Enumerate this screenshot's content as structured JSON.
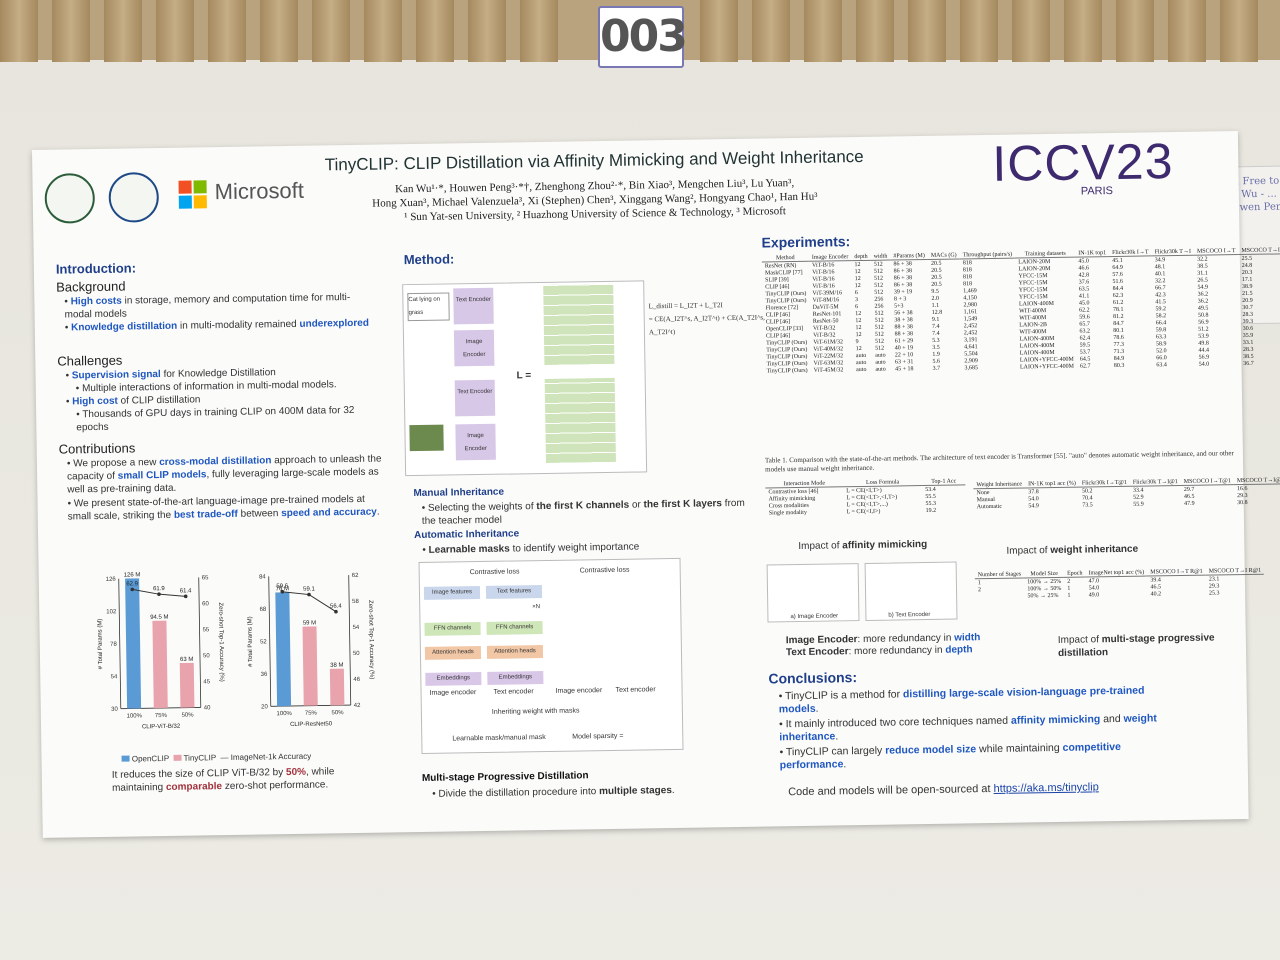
{
  "booth": {
    "number": "003"
  },
  "side_note": {
    "lines": [
      "Feel Free to",
      "Kan Wu - ...",
      "Houwen Peng",
      "..."
    ]
  },
  "poster": {
    "logos": {
      "microsoft": "Microsoft"
    },
    "title": "TinyCLIP: CLIP Distillation via Affinity Mimicking and Weight Inheritance",
    "authors_line1": "Kan Wu¹·*, Houwen Peng³·*†, Zhenghong Zhou²·*, Bin Xiao³, Mengchen Liu³, Lu Yuan³,",
    "authors_line2": "Hong Xuan³, Michael Valenzuela³, Xi (Stephen) Chen³, Xinggang Wang², Hongyang Chao¹, Han Hu³",
    "affiliations": "¹ Sun Yat-sen University, ² Huazhong University of Science & Technology, ³ Microsoft",
    "conference": "ICCV23",
    "location": "PARIS",
    "introduction": {
      "heading": "Introduction:",
      "background_title": "Background",
      "background_1a": "High costs",
      "background_1b": " in storage, memory and computation time for multi-modal models",
      "background_2a": "Knowledge distillation",
      "background_2b": " in multi-modality remained ",
      "background_2c": "underexplored",
      "challenges_title": "Challenges",
      "challenge_1a": "Supervision signal",
      "challenge_1b": " for Knowledge Distillation",
      "challenge_1_sub": "Multiple interactions of information in multi-modal models.",
      "challenge_2a": "High cost",
      "challenge_2b": " of CLIP distillation",
      "challenge_2_sub": "Thousands of GPU days in training CLIP on 400M data for 32 epochs",
      "contributions_title": "Contributions",
      "contribution_1a": "We propose a new ",
      "contribution_1b": "cross-modal distillation",
      "contribution_1c": " approach to unleash the capacity of ",
      "contribution_1d": "small CLIP models",
      "contribution_1e": ", fully leveraging large-scale models as well as pre-training data.",
      "contribution_2a": "We present state-of-the-art language-image pre-trained models at small scale, striking the ",
      "contribution_2b": "best trade-off",
      "contribution_2c": " between ",
      "contribution_2d": "speed and accuracy",
      "contribution_2e": "."
    },
    "charts_caption_a": "It reduces the size of CLIP ViT-B/32 by ",
    "charts_caption_b": "50%",
    "charts_caption_c": ", while maintaining ",
    "charts_caption_d": "comparable",
    "charts_caption_e": " zero-shot performance.",
    "legend": {
      "openclip": "OpenCLIP",
      "tinyclip": "TinyCLIP",
      "imagenet": "ImageNet-1k Accuracy"
    },
    "method": {
      "heading": "Method:",
      "caption_cat": "Cat lying on grass",
      "text_encoder": "Text Encoder",
      "image_encoder": "Image Encoder",
      "loss_label": "L =",
      "manual_title": "Manual Inheritance",
      "manual_text_a": "Selecting the weights of ",
      "manual_text_b": "the first K channels",
      "manual_text_c": " or ",
      "manual_text_d": "the first K layers",
      "manual_text_e": " from the teacher model",
      "auto_title": "Automatic Inheritance",
      "auto_text_a": "Learnable masks",
      "auto_text_b": " to identify weight importance",
      "contrastive_loss": "Contrastive loss",
      "image_features": "Image features",
      "text_features": "Text features",
      "ffn": "FFN channels",
      "attn": "Attention heads",
      "emb": "Embeddings",
      "img_enc": "Image encoder",
      "txt_enc": "Text encoder",
      "inheriting": "Inheriting weight with masks",
      "mask_legend": "Learnable mask/manual mask",
      "sparsity": "Model sparsity =",
      "xn": "×N",
      "multistage_title": "Multi-stage Progressive Distillation",
      "multistage_text_a": "Divide the distillation procedure into ",
      "multistage_text_b": "multiple stages",
      "multistage_text_c": "."
    },
    "experiments": {
      "heading": "Experiments:",
      "table1_caption": "Table 1. Comparison with the state-of-the-art methods. The architecture of text encoder is Transformer [55]. \"auto\" denotes automatic weight inheritance, and our other models use manual weight inheritance.",
      "table1_header": [
        "Method",
        "Image Encoder",
        "depth",
        "width",
        "#Params (M)",
        "MACs (G)",
        "Throughput (pairs/s)",
        "Training datasets",
        "IN-1K top1",
        "Flickr30k I→T",
        "Flickr30k T→I",
        "MSCOCO I→T",
        "MSCOCO T→I"
      ],
      "table1_rows": [
        [
          "ResNet (RN)",
          "ViT-B/16",
          "12",
          "512",
          "86 + 38",
          "20.5",
          "818",
          "LAION-20M",
          "45.0",
          "45.1",
          "34.9",
          "32.2",
          "25.5"
        ],
        [
          "MaskCLIP [77]",
          "ViT-B/16",
          "12",
          "512",
          "86 + 38",
          "20.5",
          "818",
          "LAION-20M",
          "46.6",
          "64.9",
          "48.1",
          "38.5",
          "24.8"
        ],
        [
          "SLIP [39]",
          "ViT-B/16",
          "12",
          "512",
          "86 + 38",
          "20.5",
          "818",
          "YFCC-15M",
          "42.8",
          "57.6",
          "40.1",
          "31.1",
          "20.3"
        ],
        [
          "CLIP [46]",
          "ViT-B/16",
          "12",
          "512",
          "86 + 38",
          "20.5",
          "818",
          "YFCC-15M",
          "37.6",
          "51.6",
          "32.2",
          "26.5",
          "17.1"
        ],
        [
          "TinyCLIP (Ours)",
          "ViT-39M/16",
          "6",
          "512",
          "39 + 19",
          "9.5",
          "1,469",
          "YFCC-15M",
          "63.5",
          "84.4",
          "66.7",
          "54.9",
          "38.9"
        ],
        [
          "TinyCLIP (Ours)",
          "ViT-8M/16",
          "3",
          "256",
          "8 + 3",
          "2.0",
          "4,150",
          "YFCC-15M",
          "41.1",
          "62.3",
          "42.3",
          "36.2",
          "21.5"
        ],
        [
          "Florence [72]",
          "DaViT-5M",
          "6",
          "256",
          "5+3",
          "1.1",
          "2,980",
          "LAION-400M",
          "45.0",
          "61.2",
          "41.5",
          "36.2",
          "20.9"
        ],
        [
          "CLIP [46]",
          "ResNet-101",
          "12",
          "512",
          "56 + 38",
          "12.8",
          "1,161",
          "WIT-400M",
          "62.2",
          "78.1",
          "59.2",
          "49.5",
          "30.7"
        ],
        [
          "CLIP [46]",
          "ResNet-50",
          "12",
          "512",
          "38 + 38",
          "9.1",
          "1,549",
          "WIT-400M",
          "59.6",
          "81.2",
          "58.2",
          "50.8",
          "28.3"
        ],
        [
          "OpenCLIP [33]",
          "ViT-B/32",
          "12",
          "512",
          "88 + 38",
          "7.4",
          "2,452",
          "LAION-2B",
          "65.7",
          "84.7",
          "66.4",
          "56.9",
          "39.3"
        ],
        [
          "CLIP [46]",
          "ViT-B/32",
          "12",
          "512",
          "88 + 38",
          "7.4",
          "2,452",
          "WIT-400M",
          "63.2",
          "80.1",
          "59.8",
          "51.2",
          "30.6"
        ],
        [
          "TinyCLIP (Ours)",
          "ViT-61M/32",
          "9",
          "512",
          "61 + 29",
          "5.3",
          "3,191",
          "LAION-400M",
          "62.4",
          "78.6",
          "63.3",
          "53.9",
          "35.9"
        ],
        [
          "TinyCLIP (Ours)",
          "ViT-40M/32",
          "12",
          "512",
          "40 + 19",
          "3.5",
          "4,641",
          "LAION-400M",
          "59.5",
          "77.3",
          "58.9",
          "49.8",
          "33.1"
        ],
        [
          "TinyCLIP (Ours)",
          "ViT-22M/32",
          "auto",
          "auto",
          "22 + 10",
          "1.9",
          "5,504",
          "LAION-400M",
          "53.7",
          "71.3",
          "52.0",
          "44.4",
          "28.3"
        ],
        [
          "TinyCLIP (Ours)",
          "ViT-63M/32",
          "auto",
          "auto",
          "63 + 31",
          "5.6",
          "2,909",
          "LAION+YFCC-400M",
          "64.5",
          "84.9",
          "66.0",
          "56.9",
          "38.5"
        ],
        [
          "TinyCLIP (Ours)",
          "ViT-45M/32",
          "auto",
          "auto",
          "45 + 18",
          "3.7",
          "3,685",
          "LAION+YFCC-400M",
          "62.7",
          "80.3",
          "63.4",
          "54.0",
          "36.7"
        ]
      ],
      "table2_header": [
        "Interaction Mode",
        "Loss Formula",
        "Top-1 Acc"
      ],
      "table2_rows": [
        [
          "Contrastive loss [46]",
          "L = CE(<I,T>)",
          "53.4"
        ],
        [
          "Affinity mimicking",
          "L = CE(<I,T>,<I,T>)",
          "55.5"
        ],
        [
          "Cross modalities",
          "L = CE(<I,T>,...)",
          "55.3"
        ],
        [
          "Single modality",
          "L = CE(<I,I>)",
          "19.2"
        ]
      ],
      "table3_header": [
        "Weight Inheritance",
        "IN-1K top1 acc (%)",
        "Flickr30k I→T@1",
        "Flickr30k T→I@1",
        "MSCOCO I→T@1",
        "MSCOCO T→I@1"
      ],
      "table3_rows": [
        [
          "None",
          "37.8",
          "50.2",
          "33.4",
          "29.7",
          "16.6"
        ],
        [
          "Manual",
          "54.0",
          "70.4",
          "52.9",
          "46.5",
          "29.3"
        ],
        [
          "Automatic",
          "54.9",
          "73.5",
          "55.9",
          "47.9",
          "30.8"
        ]
      ],
      "impact_affinity_a": "Impact of ",
      "impact_affinity_b": "affinity mimicking",
      "impact_weight_a": "Impact of ",
      "impact_weight_b": "weight inheritance",
      "table4_header": [
        "Number of Stages",
        "Model Size",
        "Epoch",
        "ImageNet top1 acc (%)",
        "MSCOCO I→T R@1",
        "MSCOCO T→I R@1"
      ],
      "table4_rows": [
        [
          "1",
          "100% → 25%",
          "2",
          "47.0",
          "39.4",
          "23.1"
        ],
        [
          "2",
          "100% → 50%",
          "1",
          "54.0",
          "46.5",
          "29.3"
        ],
        [
          "",
          "50% → 25%",
          "1",
          "49.0",
          "40.2",
          "25.3"
        ]
      ],
      "fig_a_label": "a) Image Encoder",
      "fig_b_label": "b) Text Encoder",
      "image_enc_a": "Image Encoder",
      "image_enc_b": ": more redundancy in ",
      "image_enc_c": "width",
      "text_enc_a": "Text Encoder",
      "text_enc_b": ": more redundancy in ",
      "text_enc_c": "depth",
      "impact_multi_a": "Impact of ",
      "impact_multi_b": "multi-stage progressive distillation"
    },
    "conclusions": {
      "heading": "Conclusions:",
      "c1a": "TinyCLIP is a method for ",
      "c1b": "distilling large-scale vision-language pre-trained models",
      "c1c": ".",
      "c2a": "It mainly introduced two core techniques named ",
      "c2b": "affinity mimicking",
      "c2c": " and ",
      "c2d": "weight inheritance",
      "c2e": ".",
      "c3a": "TinyCLIP can largely ",
      "c3b": "reduce model size",
      "c3c": " while maintaining ",
      "c3d": "competitive performance",
      "c3e": ".",
      "code_text": "Code and models will be open-sourced at ",
      "code_link": "https://aka.ms/tinyclip"
    }
  },
  "chart_data": [
    {
      "type": "bar",
      "title": "CLIP-ViT-B/32",
      "categories": [
        "100%",
        "75%",
        "50%"
      ],
      "series": [
        {
          "name": "OpenCLIP",
          "values": [
            126,
            null,
            null
          ],
          "labels": [
            "126 M",
            "",
            ""
          ]
        },
        {
          "name": "TinyCLIP",
          "values": [
            null,
            94.5,
            63
          ],
          "labels": [
            "",
            "94.5 M",
            "63 M"
          ]
        },
        {
          "name": "ImageNet-1k Accuracy",
          "type": "line",
          "values": [
            62.9,
            61.9,
            61.4
          ]
        }
      ],
      "ylabel": "# Total Params (M)",
      "ylim": [
        30,
        126
      ],
      "yticks": [
        "30",
        "54",
        "78",
        "102",
        "126"
      ],
      "y2label": "Zero-shot Top-1 Accuracy (%)",
      "y2lim": [
        40,
        65
      ],
      "y2ticks": [
        "40",
        "45",
        "50",
        "55",
        "60",
        "65"
      ]
    },
    {
      "type": "bar",
      "title": "CLIP-ResNet50",
      "categories": [
        "100%",
        "75%",
        "50%"
      ],
      "series": [
        {
          "name": "OpenCLIP",
          "values": [
            76,
            null,
            null
          ],
          "labels": [
            "76 M",
            "",
            ""
          ]
        },
        {
          "name": "TinyCLIP",
          "values": [
            null,
            59,
            38
          ],
          "labels": [
            "",
            "59 M",
            "38 M"
          ]
        },
        {
          "name": "ImageNet-1k Accuracy",
          "type": "line",
          "values": [
            59.6,
            59.1,
            56.4
          ]
        }
      ],
      "ylabel": "# Total Params (M)",
      "ylim": [
        20,
        84
      ],
      "yticks": [
        "20",
        "36",
        "52",
        "68",
        "84"
      ],
      "y2label": "Zero-shot Top-1 Accuracy (%)",
      "y2lim": [
        42,
        62
      ],
      "y2ticks": [
        "42",
        "46",
        "50",
        "54",
        "58",
        "62"
      ]
    }
  ]
}
